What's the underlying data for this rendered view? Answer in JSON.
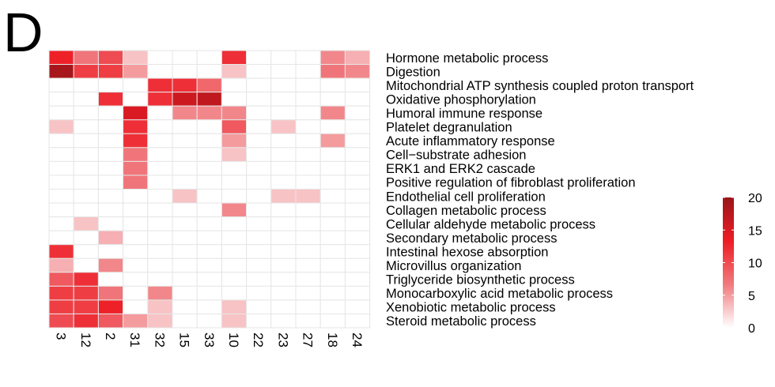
{
  "panel_label": "D",
  "chart_data": {
    "type": "heatmap",
    "columns": [
      "3",
      "12",
      "2",
      "31",
      "32",
      "15",
      "33",
      "10",
      "22",
      "23",
      "27",
      "18",
      "24"
    ],
    "rows": [
      "Hormone metabolic process",
      "Digestion",
      "Mitochondrial ATP synthesis coupled proton transport",
      "Oxidative phosphorylation",
      "Humoral immune response",
      "Platelet degranulation",
      "Acute inflammatory response",
      "Cell−substrate adhesion",
      "ERK1 and ERK2 cascade",
      "Positive regulation of fibroblast proliferation",
      "Endothelial cell proliferation",
      "Collagen metabolic process",
      "Cellular aldehyde metabolic process",
      "Secondary metabolic process",
      "Intestinal hexose absorption",
      "Microvillus organization",
      "Triglyceride biosynthetic process",
      "Monocarboxylic acid metabolic process",
      "Xenobiotic metabolic process",
      "Steroid metabolic process"
    ],
    "values": [
      [
        13,
        7,
        10,
        3,
        0,
        0,
        0,
        12,
        0,
        0,
        0,
        6,
        4
      ],
      [
        19,
        11,
        11,
        5,
        0,
        0,
        0,
        3,
        0,
        0,
        0,
        7,
        6
      ],
      [
        0,
        0,
        0,
        0,
        12,
        12,
        8,
        0,
        0,
        0,
        0,
        0,
        0
      ],
      [
        0,
        0,
        12,
        0,
        12,
        16,
        17,
        0,
        0,
        0,
        0,
        0,
        0
      ],
      [
        0,
        0,
        0,
        15,
        0,
        6,
        6,
        6,
        0,
        0,
        0,
        6,
        0
      ],
      [
        3,
        0,
        0,
        12,
        0,
        0,
        0,
        9,
        0,
        3,
        0,
        0,
        0
      ],
      [
        0,
        0,
        0,
        12,
        0,
        0,
        0,
        5,
        0,
        0,
        0,
        5,
        0
      ],
      [
        0,
        0,
        0,
        7,
        0,
        0,
        0,
        3,
        0,
        0,
        0,
        0,
        0
      ],
      [
        0,
        0,
        0,
        7,
        0,
        0,
        0,
        0,
        0,
        0,
        0,
        0,
        0
      ],
      [
        0,
        0,
        0,
        7,
        0,
        0,
        0,
        0,
        0,
        0,
        0,
        0,
        0
      ],
      [
        0,
        0,
        0,
        0,
        0,
        3,
        0,
        0,
        0,
        3,
        3,
        0,
        0
      ],
      [
        0,
        0,
        0,
        0,
        0,
        0,
        0,
        6,
        0,
        0,
        0,
        0,
        0
      ],
      [
        0,
        3,
        0,
        0,
        0,
        0,
        0,
        0,
        0,
        0,
        0,
        0,
        0
      ],
      [
        0,
        0,
        4,
        0,
        0,
        0,
        0,
        0,
        0,
        0,
        0,
        0,
        0
      ],
      [
        12,
        0,
        0,
        0,
        0,
        0,
        0,
        0,
        0,
        0,
        0,
        0,
        0
      ],
      [
        4,
        0,
        6,
        0,
        0,
        0,
        0,
        0,
        0,
        0,
        0,
        0,
        0
      ],
      [
        9,
        12,
        0,
        0,
        0,
        0,
        0,
        0,
        0,
        0,
        0,
        0,
        0
      ],
      [
        11,
        11,
        7,
        0,
        6,
        0,
        0,
        0,
        0,
        0,
        0,
        0,
        0
      ],
      [
        11,
        11,
        13,
        0,
        3,
        0,
        0,
        3,
        0,
        0,
        0,
        0,
        0
      ],
      [
        10,
        12,
        9,
        5,
        3,
        0,
        0,
        3,
        0,
        0,
        0,
        0,
        0
      ]
    ],
    "colorbar": {
      "min": 0,
      "max": 20,
      "ticks": [
        20,
        15,
        10,
        5,
        0
      ],
      "colors": [
        "#ffffff",
        "#f07a7e",
        "#ee1c25",
        "#991519"
      ]
    },
    "grid_color": "#e6e6e6"
  }
}
